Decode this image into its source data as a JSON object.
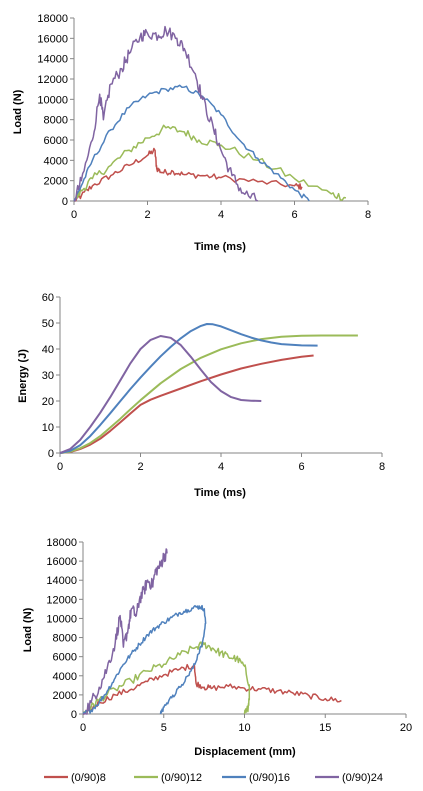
{
  "colors": {
    "(0/90)8": "#C0504D",
    "(0/90)12": "#9BBB59",
    "(0/90)16": "#4F81BD",
    "(0/90)24": "#8064A2",
    "axis": "#868686",
    "grid": "#D9D9D9"
  },
  "legend": {
    "position": "bottom",
    "entries": [
      "(0/90)8",
      "(0/90)12",
      "(0/90)16",
      "(0/90)24"
    ]
  },
  "chart_data": [
    {
      "type": "line",
      "title": "",
      "xlabel": "Time (ms)",
      "ylabel": "Load (N)",
      "xlim": [
        0,
        8
      ],
      "ylim": [
        0,
        18000
      ],
      "xticks": [
        "0",
        "2",
        "4",
        "6",
        "8"
      ],
      "yticks": [
        "0",
        "2000",
        "4000",
        "6000",
        "8000",
        "10000",
        "12000",
        "14000",
        "16000",
        "18000"
      ],
      "grid": false,
      "series": [
        {
          "name": "(0/90)8",
          "noise": 300,
          "x": [
            0,
            0.2,
            0.5,
            1.0,
            1.5,
            2.0,
            2.2,
            2.25,
            2.4,
            2.7,
            3.0,
            3.5,
            4.0,
            5.0,
            6.0,
            6.2
          ],
          "y": [
            0,
            500,
            1500,
            2500,
            3500,
            4500,
            5000,
            3200,
            2800,
            2900,
            2600,
            2500,
            2300,
            1900,
            1500,
            1400
          ]
        },
        {
          "name": "(0/90)12",
          "noise": 400,
          "x": [
            0,
            0.2,
            0.5,
            1.0,
            1.5,
            2.0,
            2.5,
            3.0,
            3.4,
            4.0,
            5.0,
            6.0,
            7.0,
            7.4
          ],
          "y": [
            0,
            1000,
            2200,
            3500,
            5000,
            6200,
            7200,
            6800,
            6000,
            5500,
            4000,
            2200,
            700,
            300
          ]
        },
        {
          "name": "(0/90)16",
          "noise": 250,
          "x": [
            0,
            0.2,
            0.5,
            1.0,
            1.5,
            2.0,
            2.5,
            3.0,
            3.5,
            4.0,
            4.5,
            5.0,
            5.5,
            6.0,
            6.4
          ],
          "y": [
            0,
            1500,
            4000,
            7000,
            9200,
            10400,
            11000,
            11200,
            10300,
            8500,
            6000,
            4200,
            2700,
            1100,
            0
          ]
        },
        {
          "name": "(0/90)24",
          "noise": 600,
          "x": [
            0,
            0.2,
            0.5,
            0.7,
            0.8,
            1.0,
            1.3,
            1.5,
            1.8,
            2.0,
            2.3,
            2.5,
            2.8,
            3.0,
            3.3,
            3.5,
            3.8,
            4.0,
            4.3,
            4.6,
            5.0
          ],
          "y": [
            0,
            2000,
            6000,
            10500,
            8000,
            11500,
            13000,
            14500,
            16200,
            16500,
            16300,
            16800,
            16000,
            15000,
            12500,
            10000,
            7000,
            5000,
            2500,
            800,
            0
          ]
        }
      ]
    },
    {
      "type": "line",
      "title": "",
      "xlabel": "Time (ms)",
      "ylabel": "Energy (J)",
      "xlim": [
        0,
        8
      ],
      "ylim": [
        0,
        60
      ],
      "xticks": [
        "0",
        "2",
        "4",
        "6",
        "8"
      ],
      "yticks": [
        "0",
        "10",
        "20",
        "30",
        "40",
        "50",
        "60"
      ],
      "grid": false,
      "series": [
        {
          "name": "(0/90)8",
          "noise": 0,
          "x": [
            0,
            0.25,
            0.5,
            0.75,
            1.0,
            1.25,
            1.5,
            1.75,
            2.0,
            2.25,
            2.5,
            3.0,
            3.5,
            4.0,
            4.5,
            5.0,
            5.5,
            6.0,
            6.3
          ],
          "y": [
            0,
            0.4,
            1.5,
            3.2,
            5.5,
            8.5,
            11.8,
            15.2,
            18.5,
            20.5,
            22.0,
            24.8,
            27.6,
            30.2,
            32.5,
            34.3,
            35.8,
            37.0,
            37.5
          ]
        },
        {
          "name": "(0/90)12",
          "noise": 0,
          "x": [
            0,
            0.25,
            0.5,
            0.75,
            1.0,
            1.25,
            1.5,
            1.75,
            2.0,
            2.5,
            3.0,
            3.5,
            4.0,
            4.5,
            5.0,
            5.5,
            6.0,
            6.5,
            7.0,
            7.4
          ],
          "y": [
            0,
            0.5,
            1.8,
            3.8,
            6.5,
            9.8,
            13.2,
            16.8,
            20.3,
            26.8,
            32.3,
            36.6,
            39.9,
            42.2,
            43.8,
            44.7,
            45.1,
            45.2,
            45.2,
            45.2
          ]
        },
        {
          "name": "(0/90)16",
          "noise": 0,
          "x": [
            0,
            0.25,
            0.5,
            0.75,
            1.0,
            1.25,
            1.5,
            1.75,
            2.0,
            2.25,
            2.5,
            2.75,
            3.0,
            3.25,
            3.5,
            3.65,
            3.8,
            4.0,
            4.25,
            4.5,
            4.75,
            5.0,
            5.25,
            5.5,
            5.75,
            6.0,
            6.4
          ],
          "y": [
            0,
            0.8,
            3.0,
            6.5,
            10.8,
            15.3,
            20.0,
            24.6,
            29.0,
            33.2,
            37.2,
            40.8,
            44.1,
            46.9,
            48.9,
            49.6,
            49.5,
            48.7,
            47.2,
            45.7,
            44.4,
            43.3,
            42.5,
            41.9,
            41.6,
            41.4,
            41.3
          ]
        },
        {
          "name": "(0/90)24",
          "noise": 0,
          "x": [
            0,
            0.25,
            0.5,
            0.75,
            1.0,
            1.25,
            1.5,
            1.75,
            2.0,
            2.25,
            2.5,
            2.75,
            3.0,
            3.25,
            3.5,
            3.75,
            4.0,
            4.25,
            4.5,
            4.75,
            5.0
          ],
          "y": [
            0,
            1.5,
            5.0,
            10.0,
            15.5,
            21.5,
            28.0,
            34.5,
            40.0,
            43.5,
            45.0,
            44.3,
            41.5,
            37.0,
            32.0,
            27.3,
            23.8,
            21.5,
            20.4,
            20.1,
            20.0
          ]
        }
      ]
    },
    {
      "type": "line",
      "title": "",
      "xlabel": "Displacement (mm)",
      "ylabel": "Load (N)",
      "xlim": [
        0,
        20
      ],
      "ylim": [
        0,
        18000
      ],
      "xticks": [
        "0",
        "5",
        "10",
        "15",
        "20"
      ],
      "yticks": [
        "0",
        "2000",
        "4000",
        "6000",
        "8000",
        "10000",
        "12000",
        "14000",
        "16000",
        "18000"
      ],
      "grid": false,
      "series": [
        {
          "name": "(0/90)8",
          "noise": 300,
          "x": [
            0,
            0.5,
            1.0,
            2.0,
            3.0,
            4.0,
            5.0,
            6.0,
            6.9,
            7.0,
            7.5,
            8.0,
            9.0,
            10.0,
            11.0,
            12.0,
            13.0,
            14.0,
            15.0,
            16.0
          ],
          "y": [
            0,
            500,
            1200,
            2000,
            2600,
            3400,
            4100,
            4700,
            5100,
            3200,
            2800,
            2700,
            2900,
            2700,
            2600,
            2400,
            2200,
            1900,
            1600,
            1400
          ]
        },
        {
          "name": "(0/90)12",
          "noise": 400,
          "x": [
            0,
            0.5,
            1.0,
            2.0,
            3.0,
            4.0,
            5.0,
            6.0,
            7.0,
            7.5,
            8.0,
            8.5,
            9.0,
            9.5,
            10.0,
            10.3,
            10.3,
            10.2,
            10.0
          ],
          "y": [
            0,
            700,
            1500,
            2600,
            3500,
            4500,
            5200,
            6200,
            7000,
            7300,
            6900,
            6400,
            6000,
            5800,
            5000,
            3000,
            1500,
            500,
            0
          ]
        },
        {
          "name": "(0/90)16",
          "noise": 250,
          "x": [
            0,
            0.5,
            1.0,
            1.5,
            2.0,
            2.5,
            3.0,
            3.5,
            4.0,
            4.5,
            5.0,
            5.5,
            6.0,
            6.5,
            7.0,
            7.3,
            7.5,
            7.6,
            7.4,
            7.0,
            6.5,
            6.0,
            5.5,
            5.0,
            4.8
          ],
          "y": [
            0,
            400,
            1200,
            2400,
            3800,
            5200,
            6300,
            7300,
            8300,
            9000,
            9600,
            10100,
            10600,
            10900,
            11200,
            11200,
            11000,
            9500,
            7500,
            5500,
            4000,
            2800,
            1700,
            700,
            0
          ]
        },
        {
          "name": "(0/90)24",
          "noise": 650,
          "x": [
            0,
            0.5,
            1.0,
            1.5,
            2.0,
            2.3,
            2.5,
            2.8,
            3.0,
            3.3,
            3.5,
            3.8,
            4.0,
            4.3,
            4.5,
            4.8,
            5.0,
            5.2
          ],
          "y": [
            0,
            1200,
            2800,
            4800,
            7500,
            10300,
            7000,
            9000,
            11000,
            10300,
            12000,
            13000,
            14000,
            13500,
            15000,
            15500,
            16500,
            16800
          ]
        }
      ]
    }
  ]
}
